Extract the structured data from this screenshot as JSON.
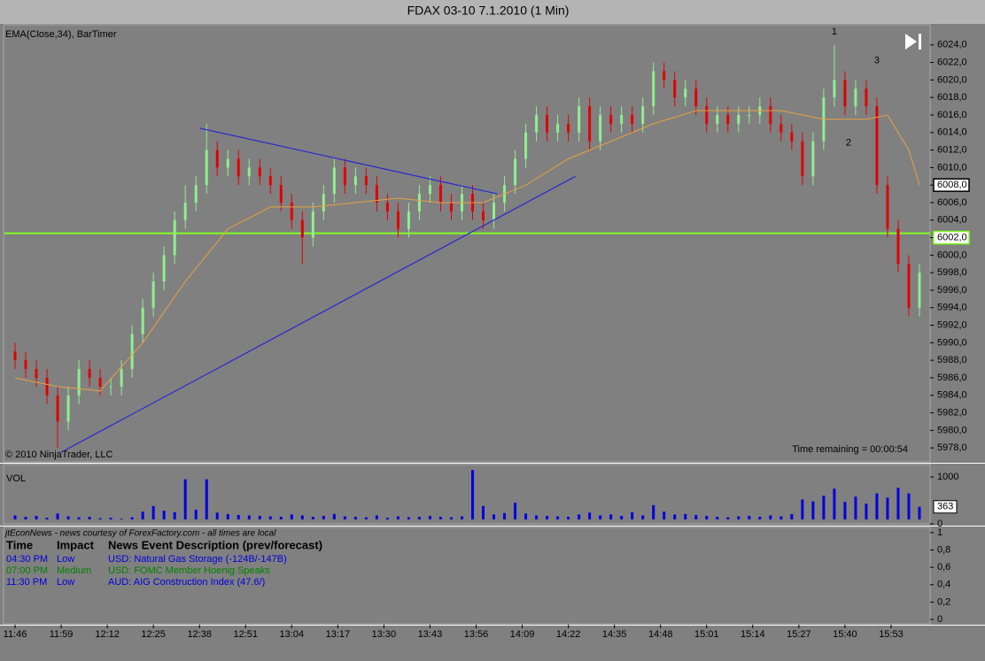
{
  "window_title": "FDAX 03-10  7.1.2010 (1 Min)",
  "chart_data": [
    {
      "type": "ohlc",
      "indicator_label": "EMA(Close,34), BarTimer",
      "copyright": "© 2010 NinjaTrader, LLC",
      "timer": "Time remaining = 00:00:54",
      "up_color": "#90ee90",
      "down_color": "#e00000",
      "x": [
        "11:46",
        "11:49",
        "11:52",
        "11:55",
        "11:58",
        "12:01",
        "12:04",
        "12:07",
        "12:10",
        "12:13",
        "12:16",
        "12:19",
        "12:22",
        "12:25",
        "12:28",
        "12:31",
        "12:34",
        "12:37",
        "12:40",
        "12:43",
        "12:46",
        "12:49",
        "12:52",
        "12:55",
        "12:58",
        "13:01",
        "13:04",
        "13:07",
        "13:10",
        "13:13",
        "13:16",
        "13:19",
        "13:22",
        "13:25",
        "13:28",
        "13:31",
        "13:34",
        "13:37",
        "13:40",
        "13:43",
        "13:46",
        "13:49",
        "13:52",
        "13:55",
        "13:58",
        "14:01",
        "14:04",
        "14:07",
        "14:10",
        "14:13",
        "14:16",
        "14:19",
        "14:22",
        "14:25",
        "14:28",
        "14:31",
        "14:34",
        "14:37",
        "14:40",
        "14:43",
        "14:46",
        "14:49",
        "14:52",
        "14:55",
        "14:58",
        "15:01",
        "15:04",
        "15:07",
        "15:10",
        "15:13",
        "15:16",
        "15:19",
        "15:22",
        "15:25",
        "15:28",
        "15:31",
        "15:34",
        "15:37",
        "15:40",
        "15:43",
        "15:46",
        "15:49",
        "15:52",
        "15:55",
        "15:58",
        "16:01"
      ],
      "open": [
        5989,
        5988,
        5987,
        5986,
        5984,
        5981,
        5984,
        5987,
        5986,
        5985,
        5985,
        5987,
        5991,
        5994,
        5997,
        6000,
        6004,
        6006,
        6008,
        6012,
        6010,
        6011,
        6009,
        6010,
        6009,
        6008,
        6006,
        6004,
        6002,
        6005,
        6007,
        6010,
        6008,
        6009,
        6008,
        6006,
        6005,
        6003,
        6005,
        6007,
        6008,
        6006,
        6005,
        6007,
        6005,
        6004,
        6006,
        6008,
        6011,
        6014,
        6016,
        6014,
        6015,
        6014,
        6017,
        6013,
        6016,
        6015,
        6016,
        6015,
        6017,
        6021,
        6020,
        6018,
        6019,
        6017,
        6015,
        6016,
        6015,
        6016,
        6016,
        6017,
        6015,
        6014,
        6013,
        6009,
        6013,
        6018,
        6020,
        6017,
        6019,
        6017,
        6008,
        6003,
        5999,
        5994
      ],
      "high": [
        5990,
        5989,
        5988,
        5987,
        5985,
        5985,
        5988,
        5988,
        5987,
        5986,
        5988,
        5992,
        5995,
        5998,
        6001,
        6005,
        6008,
        6009,
        6015,
        6013,
        6012,
        6012,
        6011,
        6011,
        6010,
        6009,
        6007,
        6005,
        6006,
        6008,
        6011,
        6011,
        6010,
        6010,
        6009,
        6007,
        6006,
        6006,
        6008,
        6009,
        6009,
        6007,
        6008,
        6008,
        6006,
        6007,
        6009,
        6012,
        6015,
        6017,
        6017,
        6016,
        6016,
        6018,
        6018,
        6017,
        6017,
        6017,
        6017,
        6018,
        6022,
        6022,
        6021,
        6020,
        6020,
        6018,
        6017,
        6017,
        6017,
        6017,
        6018,
        6018,
        6016,
        6015,
        6014,
        6014,
        6019,
        6024,
        6021,
        6020,
        6020,
        6018,
        6009,
        6004,
        6000,
        5999
      ],
      "low": [
        5987,
        5986,
        5985,
        5983,
        5978,
        5980,
        5983,
        5985,
        5984,
        5984,
        5984,
        5986,
        5990,
        5993,
        5996,
        5999,
        6003,
        6005,
        6007,
        6009,
        6009,
        6008,
        6008,
        6008,
        6007,
        6005,
        6003,
        5999,
        6001,
        6004,
        6006,
        6007,
        6007,
        6007,
        6005,
        6004,
        6002,
        6002,
        6004,
        6006,
        6005,
        6004,
        6004,
        6004,
        6003,
        6003,
        6005,
        6007,
        6010,
        6013,
        6013,
        6013,
        6013,
        6013,
        6012,
        6012,
        6014,
        6014,
        6014,
        6014,
        6016,
        6019,
        6017,
        6017,
        6016,
        6014,
        6014,
        6014,
        6014,
        6015,
        6015,
        6014,
        6013,
        6012,
        6008,
        6008,
        6012,
        6017,
        6016,
        6016,
        6016,
        6007,
        6002,
        5998,
        5993,
        5993
      ],
      "close": [
        5988,
        5987,
        5986,
        5984,
        5981,
        5984,
        5987,
        5986,
        5985,
        5985,
        5987,
        5991,
        5994,
        5997,
        6000,
        6004,
        6006,
        6008,
        6012,
        6010,
        6011,
        6009,
        6010,
        6009,
        6008,
        6006,
        6004,
        6002,
        6005,
        6007,
        6010,
        6008,
        6009,
        6008,
        6006,
        6005,
        6003,
        6005,
        6007,
        6008,
        6006,
        6005,
        6007,
        6005,
        6004,
        6006,
        6008,
        6011,
        6014,
        6016,
        6014,
        6015,
        6014,
        6017,
        6013,
        6016,
        6015,
        6016,
        6015,
        6017,
        6021,
        6020,
        6018,
        6019,
        6017,
        6015,
        6016,
        6015,
        6016,
        6016,
        6017,
        6015,
        6014,
        6013,
        6009,
        6013,
        6018,
        6020,
        6017,
        6019,
        6017,
        6008,
        6003,
        5999,
        5994,
        5998
      ],
      "overlays": [
        {
          "color": "#e8a040",
          "x": [
            "11:46",
            "11:58",
            "12:10",
            "12:22",
            "12:34",
            "12:46",
            "12:58",
            "13:10",
            "13:22",
            "13:34",
            "13:46",
            "13:58",
            "14:10",
            "14:22",
            "14:34",
            "14:46",
            "14:58",
            "15:10",
            "15:22",
            "15:34",
            "15:46",
            "15:52",
            "15:58",
            "16:01"
          ],
          "y": [
            5986,
            5985,
            5984.5,
            5990,
            5997,
            6003,
            6005.5,
            6005.5,
            6006,
            6006.5,
            6006,
            6006,
            6008,
            6011,
            6013,
            6015,
            6016.5,
            6016.5,
            6016.5,
            6015.5,
            6015.5,
            6016,
            6012,
            6008
          ]
        },
        {
          "color": "#2828d0",
          "x": [
            "12:38",
            "14:02"
          ],
          "y": [
            6014.5,
            6007
          ]
        },
        {
          "color": "#2828d0",
          "x": [
            "11:59",
            "14:24"
          ],
          "y": [
            5977.5,
            6009
          ]
        }
      ],
      "hline": {
        "value": 6002.5,
        "color": "#80ff20"
      },
      "price_markers": [
        {
          "value": 6008,
          "label": "6008,0",
          "color": "#ffffff"
        },
        {
          "value": 6002,
          "label": "6002,0",
          "color": "#80ff20"
        }
      ],
      "annotations": [
        {
          "text": "1",
          "x": "15:37",
          "y": 6025.5
        },
        {
          "text": "2",
          "x": "15:41",
          "y": 6012.8
        },
        {
          "text": "3",
          "x": "15:49",
          "y": 6022.2
        }
      ],
      "xlim": [
        "11:43",
        "16:04"
      ],
      "xticks": [
        "11:46",
        "11:59",
        "12:12",
        "12:25",
        "12:38",
        "12:51",
        "13:04",
        "13:17",
        "13:30",
        "13:43",
        "13:56",
        "14:09",
        "14:22",
        "14:35",
        "14:48",
        "15:01",
        "15:14",
        "15:27",
        "15:40",
        "15:53"
      ],
      "ylim": [
        5976.4,
        6026.3
      ],
      "yticks": [
        {
          "value": 5978,
          "label": "5978,0"
        },
        {
          "value": 5980,
          "label": "5980,0"
        },
        {
          "value": 5982,
          "label": "5982,0"
        },
        {
          "value": 5984,
          "label": "5984,0"
        },
        {
          "value": 5986,
          "label": "5986,0"
        },
        {
          "value": 5988,
          "label": "5988,0"
        },
        {
          "value": 5990,
          "label": "5990,0"
        },
        {
          "value": 5992,
          "label": "5992,0"
        },
        {
          "value": 5994,
          "label": "5994,0"
        },
        {
          "value": 5996,
          "label": "5996,0"
        },
        {
          "value": 5998,
          "label": "5998,0"
        },
        {
          "value": 6000,
          "label": "6000,0"
        },
        {
          "value": 6002,
          "label": "6002,0"
        },
        {
          "value": 6004,
          "label": "6004,0"
        },
        {
          "value": 6006,
          "label": "6006,0"
        },
        {
          "value": 6008,
          "label": "6008,0"
        },
        {
          "value": 6010,
          "label": "6010,0"
        },
        {
          "value": 6012,
          "label": "6012,0"
        },
        {
          "value": 6014,
          "label": "6014,0"
        },
        {
          "value": 6016,
          "label": "6016,0"
        },
        {
          "value": 6018,
          "label": "6018,0"
        },
        {
          "value": 6020,
          "label": "6020,0"
        },
        {
          "value": 6022,
          "label": "6022,0"
        },
        {
          "value": 6024,
          "label": "6024,0"
        }
      ]
    },
    {
      "type": "bar",
      "label": "VOL",
      "color": "#0000e0",
      "x": [
        "11:46",
        "11:49",
        "11:52",
        "11:55",
        "11:58",
        "12:01",
        "12:04",
        "12:07",
        "12:10",
        "12:13",
        "12:16",
        "12:19",
        "12:22",
        "12:25",
        "12:28",
        "12:31",
        "12:34",
        "12:37",
        "12:40",
        "12:43",
        "12:46",
        "12:49",
        "12:52",
        "12:55",
        "12:58",
        "13:01",
        "13:04",
        "13:07",
        "13:10",
        "13:13",
        "13:16",
        "13:19",
        "13:22",
        "13:25",
        "13:28",
        "13:31",
        "13:34",
        "13:37",
        "13:40",
        "13:43",
        "13:46",
        "13:49",
        "13:52",
        "13:55",
        "13:58",
        "14:01",
        "14:04",
        "14:07",
        "14:10",
        "14:13",
        "14:16",
        "14:19",
        "14:22",
        "14:25",
        "14:28",
        "14:31",
        "14:34",
        "14:37",
        "14:40",
        "14:43",
        "14:46",
        "14:49",
        "14:52",
        "14:55",
        "14:58",
        "15:01",
        "15:04",
        "15:07",
        "15:10",
        "15:13",
        "15:16",
        "15:19",
        "15:22",
        "15:25",
        "15:28",
        "15:31",
        "15:34",
        "15:37",
        "15:40",
        "15:43",
        "15:46",
        "15:49",
        "15:52",
        "15:55",
        "15:58",
        "16:01"
      ],
      "values": [
        180,
        150,
        170,
        130,
        220,
        160,
        140,
        150,
        120,
        130,
        110,
        140,
        260,
        380,
        280,
        250,
        950,
        300,
        950,
        240,
        210,
        190,
        180,
        170,
        160,
        150,
        200,
        180,
        150,
        170,
        210,
        160,
        150,
        140,
        180,
        130,
        160,
        140,
        150,
        170,
        150,
        140,
        160,
        1150,
        380,
        200,
        230,
        450,
        220,
        180,
        170,
        160,
        150,
        200,
        240,
        180,
        200,
        170,
        250,
        180,
        400,
        260,
        200,
        210,
        190,
        170,
        150,
        140,
        160,
        170,
        150,
        180,
        160,
        210,
        520,
        480,
        600,
        750,
        470,
        580,
        430,
        650,
        560,
        770,
        650,
        363
      ],
      "last_marker": 363,
      "xlim": [
        "11:43",
        "16:04"
      ],
      "ylim": [
        0,
        1265
      ],
      "yticks": [
        0,
        1000
      ]
    }
  ],
  "news_panel": {
    "source": "jtEconNews - news courtesy of ForexFactory.com - all times are local",
    "headers": [
      "Time",
      "Impact",
      "News Event Description (prev/forecast)"
    ],
    "rows": [
      {
        "color": "#0000e0",
        "cells": [
          "04:30 PM",
          "Low",
          "USD: Natural Gas Storage (-124B/-147B)"
        ]
      },
      {
        "color": "#008000",
        "cells": [
          "07:00 PM",
          "Medium",
          "USD: FOMC Member Hoenig Speaks"
        ]
      },
      {
        "color": "#0000e0",
        "cells": [
          "11:30 PM",
          "Low",
          "AUD: AIG Construction Index (47.6/)"
        ]
      }
    ],
    "ylim": [
      -0.05,
      1.06
    ],
    "yticks": [
      {
        "value": 0,
        "label": "0"
      },
      {
        "value": 0.2,
        "label": "0,2"
      },
      {
        "value": 0.4,
        "label": "0,4"
      },
      {
        "value": 0.6,
        "label": "0,6"
      },
      {
        "value": 0.8,
        "label": "0,8"
      },
      {
        "value": 1,
        "label": "1"
      }
    ]
  }
}
